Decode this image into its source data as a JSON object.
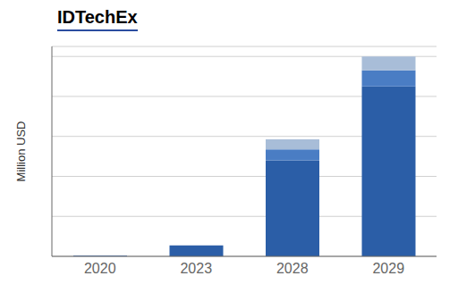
{
  "chart_data": {
    "type": "bar",
    "title": "IDTechEx",
    "categories": [
      "2020",
      "2023",
      "2028",
      "2029"
    ],
    "series": [
      {
        "color": "#2B5EA7",
        "values": [
          3,
          55,
          480,
          850
        ]
      },
      {
        "color": "#4A7DC4",
        "values": [
          0,
          0,
          55,
          80
        ]
      },
      {
        "color": "#A8BDD8",
        "values": [
          0,
          0,
          50,
          70
        ]
      }
    ],
    "ylabel": "Million USD",
    "ylim": [
      0,
      1050
    ],
    "yticks": [
      0,
      200,
      400,
      600,
      800,
      1000
    ],
    "grid": true,
    "stacked": true,
    "tick_labels": "x"
  }
}
